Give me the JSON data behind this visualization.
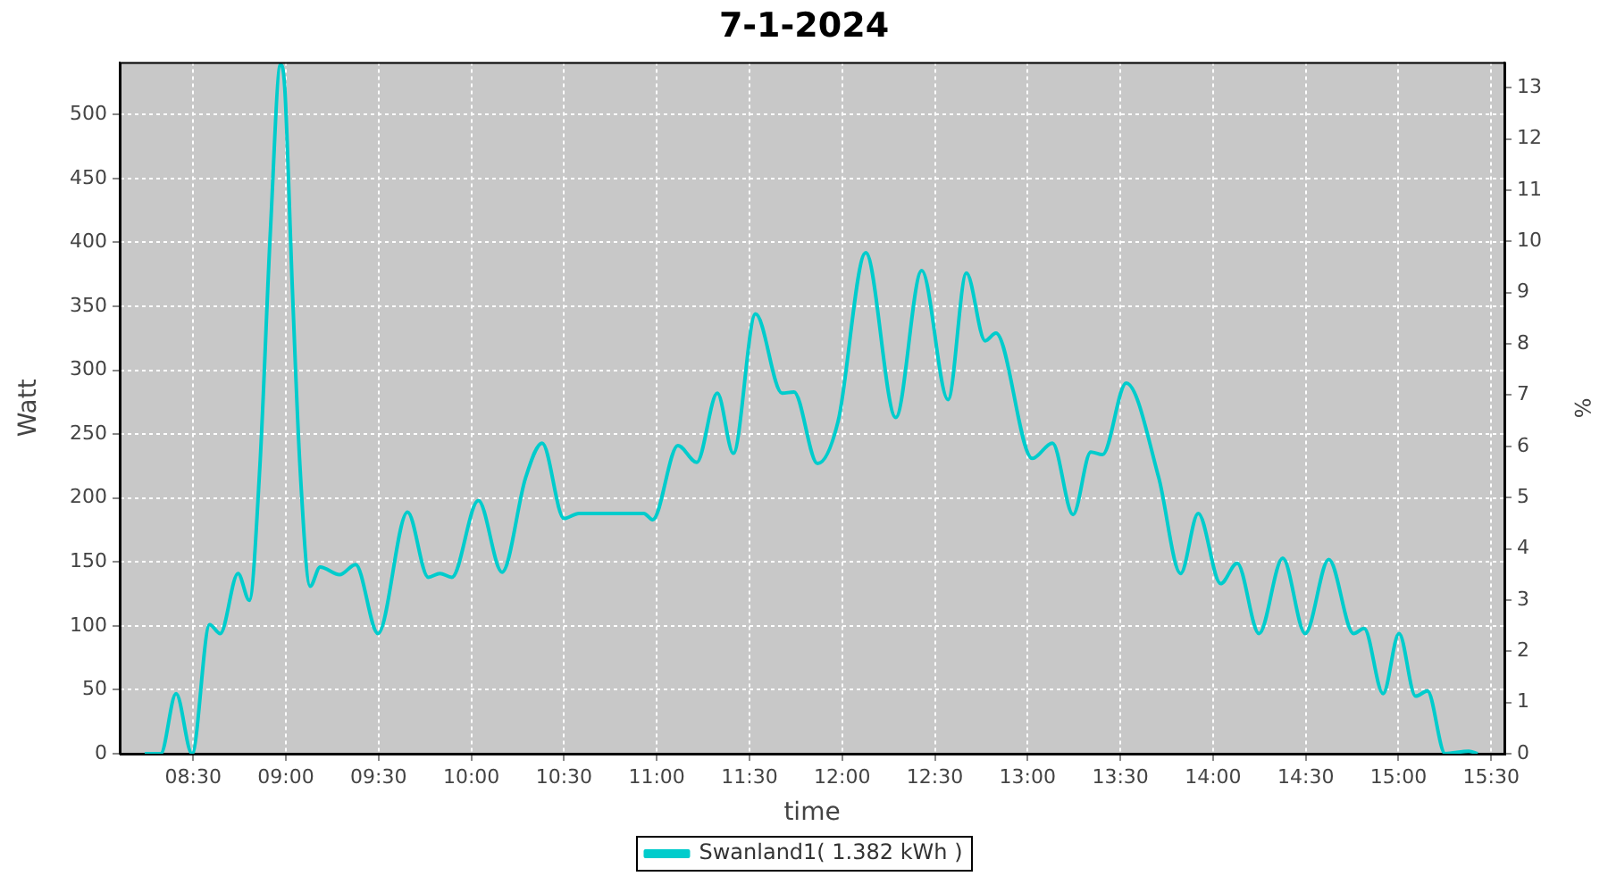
{
  "chart_data": {
    "type": "line",
    "title": "7-1-2024",
    "xlabel": "time",
    "ylabel": "Watt",
    "y2label": "%",
    "x": [
      8.239,
      8.325,
      8.408,
      8.494,
      8.589,
      8.646,
      8.742,
      8.803,
      8.86,
      8.917,
      8.971,
      8.994,
      9.035,
      9.076,
      9.131,
      9.185,
      9.29,
      9.376,
      9.497,
      9.656,
      9.768,
      9.831,
      9.895,
      10.038,
      10.166,
      10.293,
      10.382,
      10.5,
      10.58,
      10.93,
      10.978,
      11.114,
      11.216,
      11.327,
      11.413,
      11.533,
      11.676,
      11.74,
      11.867,
      11.978,
      12.127,
      12.289,
      12.429,
      12.571,
      12.67,
      12.771,
      12.829,
      13.025,
      13.134,
      13.245,
      13.341,
      13.404,
      13.532,
      13.707,
      13.825,
      13.92,
      14.041,
      14.13,
      14.248,
      14.376,
      14.497,
      14.624,
      14.758,
      14.815,
      14.917,
      15.003,
      15.092,
      15.156,
      15.252,
      15.379,
      15.427
    ],
    "series": [
      {
        "name": "Swanland1( 1.382 kWh )",
        "color": "#00cccc",
        "values": [
          0,
          0,
          47,
          0,
          101,
          94,
          141,
          120,
          225,
          410,
          539,
          521,
          364,
          225,
          131,
          146,
          140,
          148,
          94,
          189,
          138,
          141,
          138,
          198,
          142,
          216,
          243,
          184,
          188,
          188,
          183,
          241,
          228,
          282,
          235,
          344,
          282,
          283,
          227,
          260,
          392,
          263,
          378,
          277,
          376,
          323,
          329,
          231,
          243,
          187,
          236,
          234,
          290,
          216,
          141,
          188,
          133,
          149,
          94,
          153,
          94,
          152,
          94,
          98,
          47,
          94,
          45,
          49,
          0,
          2,
          0
        ]
      }
    ],
    "xlim": [
      8.104,
      15.571
    ],
    "xticks": [
      {
        "value": 8.5,
        "label": "08:30"
      },
      {
        "value": 9,
        "label": "09:00"
      },
      {
        "value": 9.5,
        "label": "09:30"
      },
      {
        "value": 10,
        "label": "10:00"
      },
      {
        "value": 10.5,
        "label": "10:30"
      },
      {
        "value": 11,
        "label": "11:00"
      },
      {
        "value": 11.5,
        "label": "11:30"
      },
      {
        "value": 12,
        "label": "12:00"
      },
      {
        "value": 12.5,
        "label": "12:30"
      },
      {
        "value": 13,
        "label": "13:00"
      },
      {
        "value": 13.5,
        "label": "13:30"
      },
      {
        "value": 14,
        "label": "14:00"
      },
      {
        "value": 14.5,
        "label": "14:30"
      },
      {
        "value": 15,
        "label": "15:00"
      },
      {
        "value": 15.5,
        "label": "15:30"
      }
    ],
    "ylim": [
      0,
      541
    ],
    "yticks": [
      0,
      50,
      100,
      150,
      200,
      250,
      300,
      350,
      400,
      450,
      500
    ],
    "y2lim": [
      0,
      13.5
    ],
    "y2ticks": [
      0,
      1,
      2,
      3,
      4,
      5,
      6,
      7,
      8,
      9,
      10,
      11,
      12,
      13
    ],
    "grid": true,
    "legend": "bottom",
    "marker": "none",
    "line_style": "solid"
  }
}
